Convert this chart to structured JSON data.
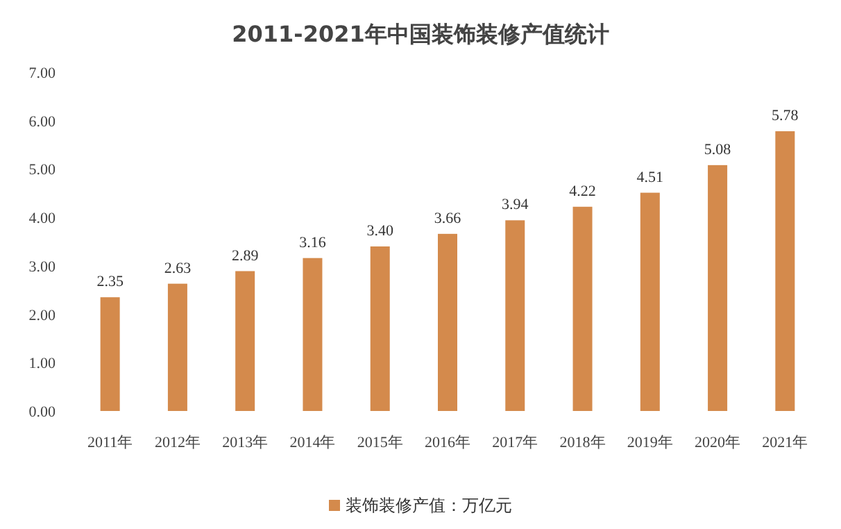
{
  "chart_data": {
    "type": "bar",
    "title": "2011-2021年中国装饰装修产值统计",
    "categories": [
      "2011年",
      "2012年",
      "2013年",
      "2014年",
      "2015年",
      "2016年",
      "2017年",
      "2018年",
      "2019年",
      "2020年",
      "2021年"
    ],
    "series": [
      {
        "name": "装饰装修产值：万亿元",
        "color": "#d48a4c",
        "values": [
          2.35,
          2.63,
          2.89,
          3.16,
          3.4,
          3.66,
          3.94,
          4.22,
          4.51,
          5.08,
          5.78
        ],
        "value_labels": [
          "2.35",
          "2.63",
          "2.89",
          "3.16",
          "3.40",
          "3.66",
          "3.94",
          "4.22",
          "4.51",
          "5.08",
          "5.78"
        ]
      }
    ],
    "ylim": [
      0,
      7
    ],
    "yticks": [
      {
        "value": 0,
        "label": "0.00"
      },
      {
        "value": 1,
        "label": "1.00"
      },
      {
        "value": 2,
        "label": "2.00"
      },
      {
        "value": 3,
        "label": "3.00"
      },
      {
        "value": 4,
        "label": "4.00"
      },
      {
        "value": 5,
        "label": "5.00"
      },
      {
        "value": 6,
        "label": "6.00"
      },
      {
        "value": 7,
        "label": "7.00"
      }
    ],
    "legend": "bottom",
    "grid": false
  }
}
